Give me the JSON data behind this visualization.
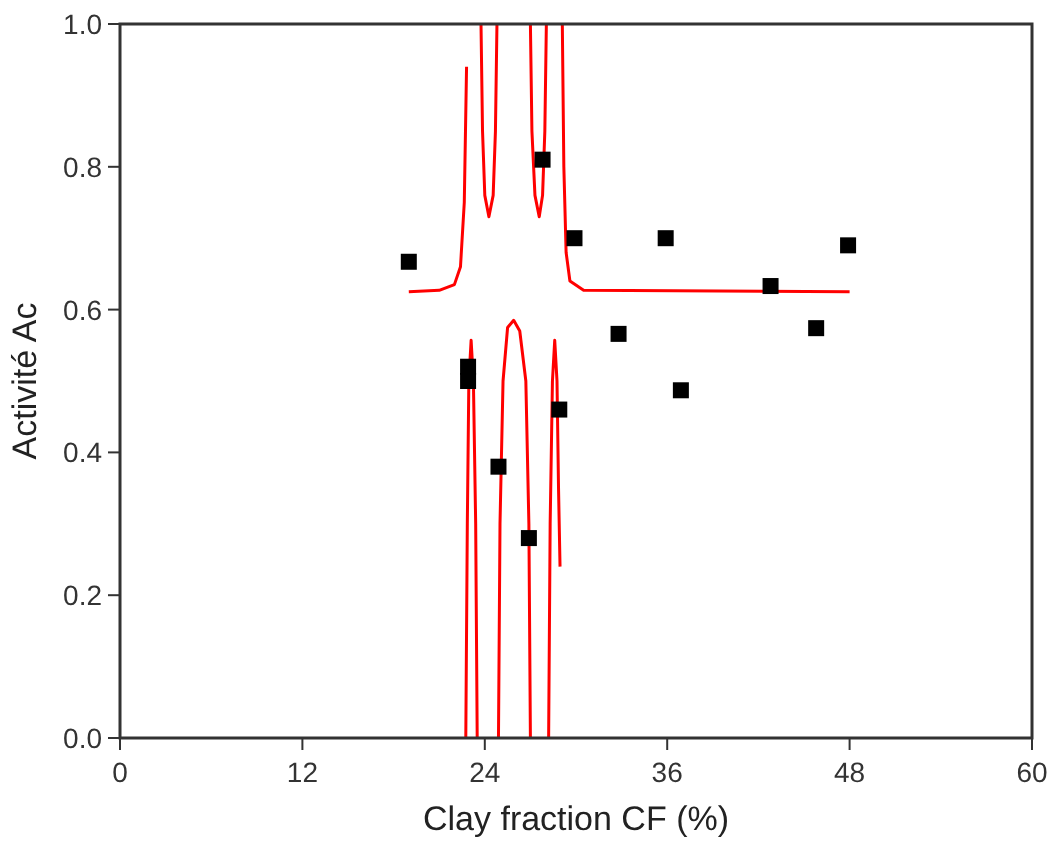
{
  "chart_data": {
    "type": "scatter",
    "xlabel": "Clay fraction CF (%)",
    "ylabel": "Activité Ac",
    "xlim": [
      0,
      60
    ],
    "ylim": [
      0,
      1.0
    ],
    "xticks": [
      0,
      12,
      24,
      36,
      48,
      60
    ],
    "yticks": [
      {
        "value": 0,
        "label": "0.0"
      },
      {
        "value": 0.2,
        "label": "0.2"
      },
      {
        "value": 0.4,
        "label": "0.4"
      },
      {
        "value": 0.6,
        "label": "0.6"
      },
      {
        "value": 0.8,
        "label": "0.8"
      },
      {
        "value": 1.0,
        "label": "1.0"
      }
    ],
    "grid": false,
    "series": [
      {
        "type": "line",
        "color": "#ff0000",
        "marker": "none",
        "line_style": "solid",
        "x": [
          19,
          21,
          22,
          22.4,
          22.65,
          22.8,
          null,
          22.75,
          22.85,
          22.95,
          23.1,
          23.25,
          23.4,
          23.5,
          null,
          23.75,
          23.85,
          24.0,
          24.27,
          24.55,
          24.7,
          24.8,
          null,
          24.9,
          25.0,
          25.2,
          25.5,
          25.9,
          26.3,
          26.7,
          26.9,
          27.0,
          null,
          27.0,
          27.1,
          27.3,
          27.58,
          27.8,
          27.95,
          28.05,
          null,
          28.2,
          28.3,
          28.45,
          28.6,
          28.75,
          28.85,
          28.95,
          null,
          29.1,
          29.2,
          29.35,
          29.6,
          30.5,
          48
        ],
        "values": [
          0.625,
          0.627,
          0.635,
          0.66,
          0.75,
          0.94,
          null,
          0,
          0.3,
          0.5,
          0.557,
          0.5,
          0.3,
          0,
          null,
          1.0,
          0.85,
          0.76,
          0.73,
          0.76,
          0.85,
          1.0,
          null,
          0,
          0.3,
          0.5,
          0.575,
          0.585,
          0.57,
          0.5,
          0.3,
          0,
          null,
          1.0,
          0.85,
          0.76,
          0.73,
          0.76,
          0.85,
          1.0,
          null,
          0,
          0.3,
          0.5,
          0.557,
          0.5,
          0.35,
          0.24,
          null,
          1.0,
          0.8,
          0.68,
          0.64,
          0.627,
          0.625
        ]
      },
      {
        "color": "#000000",
        "marker": "square",
        "x": [
          19,
          22.9,
          22.9,
          24.9,
          26.9,
          27.8,
          28.9,
          29.9,
          32.8,
          35.9,
          36.9,
          42.8,
          45.8,
          47.9
        ],
        "values": [
          0.667,
          0.52,
          0.5,
          0.38,
          0.28,
          0.81,
          0.46,
          0.7,
          0.566,
          0.7,
          0.487,
          0.633,
          0.574,
          0.69
        ]
      }
    ]
  }
}
